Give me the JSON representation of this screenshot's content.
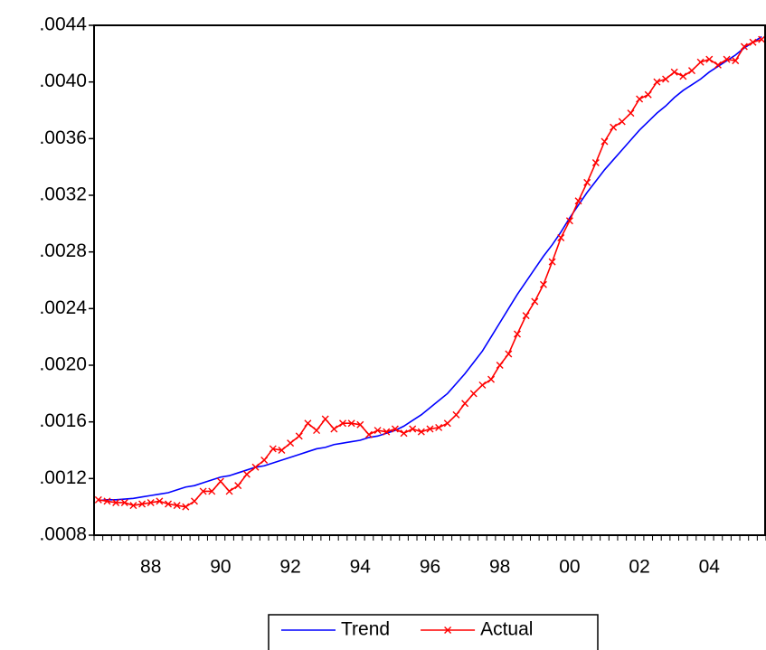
{
  "chart_data": {
    "type": "line",
    "categories": [
      null,
      null,
      null,
      null,
      null,
      null,
      "88",
      null,
      null,
      null,
      null,
      null,
      null,
      null,
      "90",
      null,
      null,
      null,
      null,
      null,
      null,
      null,
      "92",
      null,
      null,
      null,
      null,
      null,
      null,
      null,
      "94",
      null,
      null,
      null,
      null,
      null,
      null,
      null,
      "96",
      null,
      null,
      null,
      null,
      null,
      null,
      null,
      "98",
      null,
      null,
      null,
      null,
      null,
      null,
      null,
      "00",
      null,
      null,
      null,
      null,
      null,
      null,
      null,
      "02",
      null,
      null,
      null,
      null,
      null,
      null,
      null,
      "04",
      null,
      null,
      null,
      null,
      null,
      null
    ],
    "series": [
      {
        "name": "Trend",
        "color": "#0000ff",
        "marker": false,
        "values": [
          0.001045,
          0.00105,
          0.00105,
          0.001055,
          0.00106,
          0.00107,
          0.00108,
          0.00109,
          0.0011,
          0.00112,
          0.00114,
          0.00115,
          0.00117,
          0.00119,
          0.00121,
          0.00122,
          0.00124,
          0.00126,
          0.00128,
          0.00129,
          0.00131,
          0.00133,
          0.00135,
          0.00137,
          0.00139,
          0.00141,
          0.00142,
          0.00144,
          0.00145,
          0.00146,
          0.00147,
          0.00149,
          0.0015,
          0.00152,
          0.00154,
          0.00157,
          0.00161,
          0.00165,
          0.0017,
          0.00175,
          0.0018,
          0.00187,
          0.00194,
          0.00202,
          0.0021,
          0.0022,
          0.0023,
          0.0024,
          0.0025,
          0.00259,
          0.00268,
          0.00277,
          0.00285,
          0.00294,
          0.00304,
          0.00313,
          0.00322,
          0.0033,
          0.00338,
          0.00345,
          0.00352,
          0.00359,
          0.00366,
          0.00372,
          0.00378,
          0.00383,
          0.00389,
          0.00394,
          0.00398,
          0.00402,
          0.00407,
          0.00411,
          0.00415,
          0.00419,
          0.00424,
          0.00428,
          0.00432
        ]
      },
      {
        "name": "Actual",
        "color": "#ff0000",
        "marker": true,
        "values": [
          0.00105,
          0.00104,
          0.00103,
          0.00103,
          0.00101,
          0.00102,
          0.00103,
          0.00104,
          0.00102,
          0.00101,
          0.001,
          0.00104,
          0.00111,
          0.00111,
          0.00118,
          0.00111,
          0.00115,
          0.00123,
          0.00128,
          0.00133,
          0.00141,
          0.0014,
          0.00145,
          0.0015,
          0.00159,
          0.00154,
          0.00162,
          0.00155,
          0.00159,
          0.00159,
          0.00158,
          0.00151,
          0.00154,
          0.00153,
          0.00155,
          0.00152,
          0.00155,
          0.00153,
          0.00155,
          0.00156,
          0.00159,
          0.00165,
          0.00173,
          0.0018,
          0.00186,
          0.0019,
          0.002,
          0.00208,
          0.00222,
          0.00235,
          0.00245,
          0.00257,
          0.00273,
          0.0029,
          0.00302,
          0.00316,
          0.00329,
          0.00343,
          0.00358,
          0.00368,
          0.00372,
          0.00378,
          0.00388,
          0.00391,
          0.004,
          0.00402,
          0.00407,
          0.00404,
          0.00408,
          0.00414,
          0.00416,
          0.00412,
          0.00416,
          0.00415,
          0.00425,
          0.00428,
          0.0043
        ]
      }
    ],
    "ylim": [
      0.0008,
      0.0044
    ],
    "yticks": [
      {
        "value": 0.0008,
        "label": ".0008"
      },
      {
        "value": 0.0012,
        "label": ".0012"
      },
      {
        "value": 0.0016,
        "label": ".0016"
      },
      {
        "value": 0.002,
        "label": ".0020"
      },
      {
        "value": 0.0024,
        "label": ".0024"
      },
      {
        "value": 0.0028,
        "label": ".0028"
      },
      {
        "value": 0.0032,
        "label": ".0032"
      },
      {
        "value": 0.0036,
        "label": ".0036"
      },
      {
        "value": 0.004,
        "label": ".0040"
      },
      {
        "value": 0.0044,
        "label": ".0044"
      }
    ],
    "grid": false,
    "legend": "bottom"
  }
}
